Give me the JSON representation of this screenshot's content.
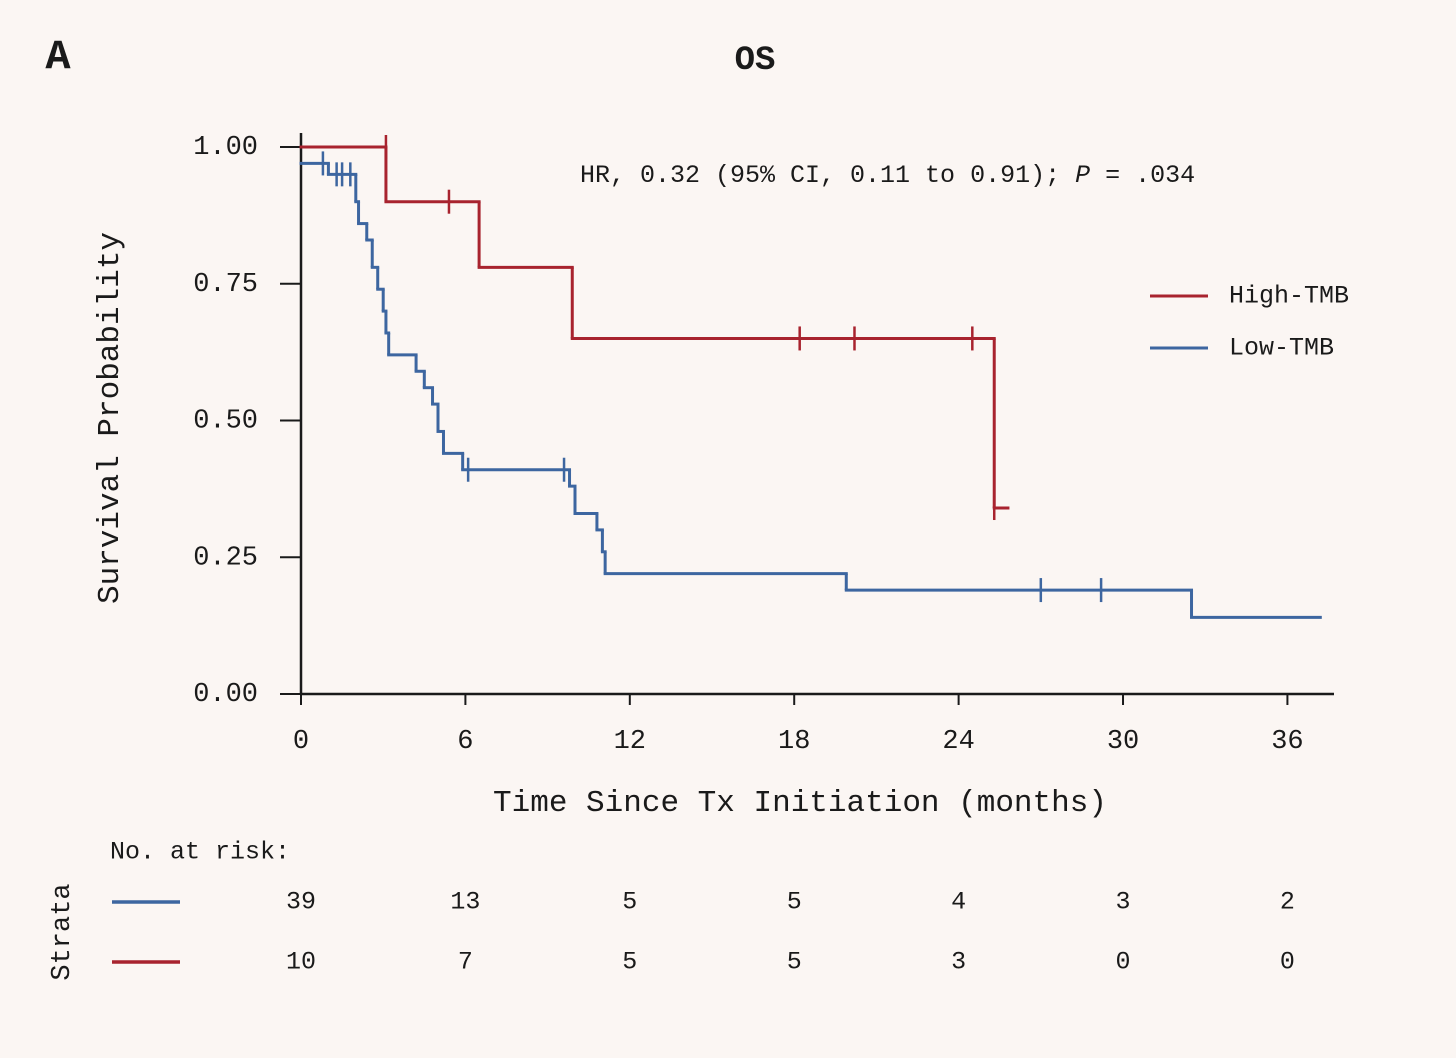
{
  "panel": "A",
  "chart_data": {
    "type": "km",
    "title": "OS",
    "xlabel": "Time Since Tx Initiation (months)",
    "ylabel": "Survival Probability",
    "annotation_parts": [
      "HR, 0.32 (95% CI, 0.11 to 0.91); ",
      "P",
      " = .034"
    ],
    "xlim": [
      0,
      37.7
    ],
    "ylim": [
      0,
      1
    ],
    "xticks": [
      0,
      6,
      12,
      18,
      24,
      30,
      36
    ],
    "yticks": [
      {
        "value": 0,
        "label": "0.00"
      },
      0.25,
      {
        "value": 0.5,
        "label": "0.50"
      },
      0.75,
      {
        "value": 1,
        "label": "1.00"
      }
    ],
    "legend": "right",
    "series": [
      {
        "name": "High-TMB",
        "color": "#a8232e",
        "x": [
          0,
          3.1,
          6.5,
          9.9,
          25.3,
          25.8
        ],
        "values": [
          1.0,
          0.9,
          0.78,
          0.65,
          0.34,
          0.34
        ],
        "censor_x": [
          3.1,
          5.4,
          18.2,
          20.2,
          24.5,
          25.3
        ],
        "censor_values": [
          1.0,
          0.9,
          0.65,
          0.65,
          0.65,
          0.34
        ]
      },
      {
        "name": "Low-TMB",
        "color": "#3d66a0",
        "x": [
          0,
          1.0,
          2.0,
          2.1,
          2.4,
          2.6,
          2.8,
          3.0,
          3.1,
          3.2,
          4.2,
          4.5,
          4.8,
          5.0,
          5.2,
          5.9,
          9.8,
          10.0,
          10.8,
          11.0,
          11.1,
          19.9,
          32.5,
          37.2
        ],
        "values": [
          0.97,
          0.95,
          0.9,
          0.86,
          0.83,
          0.78,
          0.74,
          0.7,
          0.66,
          0.62,
          0.59,
          0.56,
          0.53,
          0.48,
          0.44,
          0.41,
          0.38,
          0.33,
          0.3,
          0.26,
          0.22,
          0.19,
          0.14,
          0.14
        ],
        "censor_x": [
          0.8,
          1.3,
          1.5,
          1.8,
          6.1,
          9.6,
          27.0,
          29.2
        ],
        "censor_values": [
          0.97,
          0.95,
          0.95,
          0.95,
          0.41,
          0.41,
          0.19,
          0.19
        ]
      }
    ],
    "risk_table": {
      "title": "No. at risk:",
      "strata_label": "Strata",
      "rows": [
        {
          "series": "Low-TMB",
          "color": "#3d66a0",
          "values": [
            39,
            13,
            5,
            5,
            4,
            3,
            2
          ]
        },
        {
          "series": "High-TMB",
          "color": "#a8232e",
          "values": [
            10,
            7,
            5,
            5,
            3,
            0,
            0
          ]
        }
      ]
    }
  }
}
